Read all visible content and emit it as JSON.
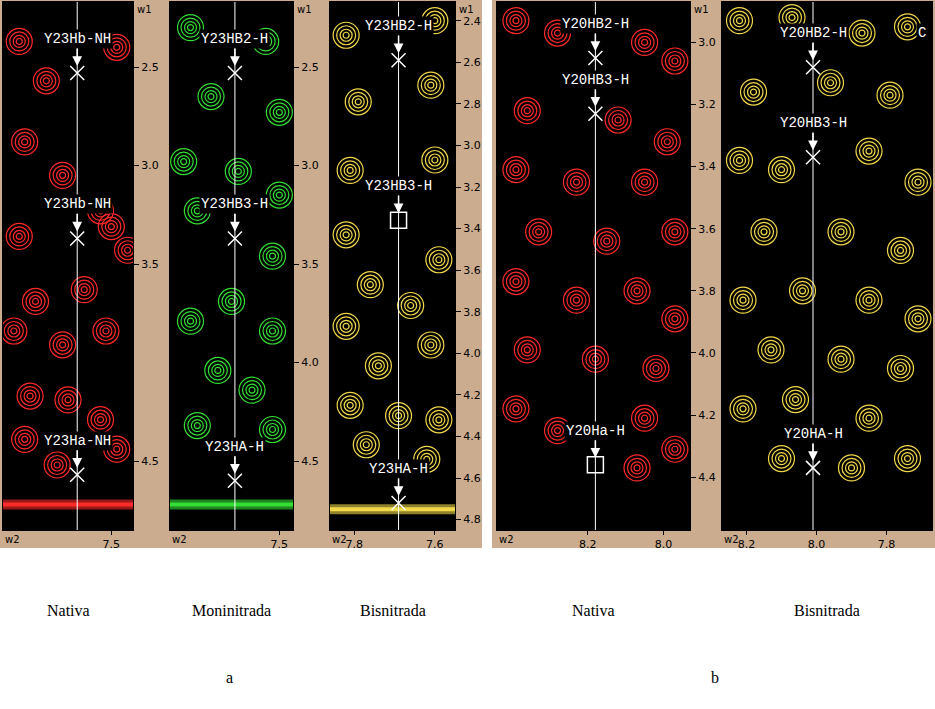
{
  "chart_data": [
    {
      "type": "strip",
      "panel": "a",
      "caption": "Nativa",
      "color": "#ff2a2a",
      "x_label": "w2",
      "y_label": "w1",
      "xlim": [
        7.7,
        7.46
      ],
      "ylim": [
        4.85,
        2.17
      ],
      "xticks": [
        7.5
      ],
      "yticks": [
        2.5,
        {
          "value": 3,
          "label": "3.0"
        },
        3.5,
        4.5
      ],
      "crosshair": 7.563,
      "band": 4.72,
      "peaks": {
        "x": [
          7.67,
          7.62,
          7.49,
          7.66,
          7.59,
          7.52,
          7.67,
          7.5,
          7.47,
          7.64,
          7.55,
          7.68,
          7.59,
          7.51,
          7.65,
          7.58,
          7.52,
          7.66,
          7.6,
          7.49
        ],
        "y": [
          2.37,
          2.57,
          2.4,
          2.88,
          3.05,
          3.23,
          3.36,
          3.31,
          3.43,
          3.69,
          3.63,
          3.84,
          3.91,
          3.84,
          4.17,
          4.19,
          4.29,
          4.39,
          4.52,
          4.44
        ]
      },
      "labels": [
        {
          "text": "Y23Hb-NH",
          "x": 7.563,
          "y": 2.53,
          "marker": "x"
        },
        {
          "text": "Y23Hb-NH",
          "x": 7.563,
          "y": 3.37,
          "marker": "x"
        },
        {
          "text": "Y23Ha-NH",
          "x": 7.563,
          "y": 4.57,
          "marker": "x"
        }
      ]
    },
    {
      "type": "strip",
      "panel": "a",
      "caption": "Moninitrada",
      "color": "#33dd33",
      "x_label": "w2",
      "y_label": "w1",
      "xlim": [
        7.66,
        7.48
      ],
      "ylim": [
        4.85,
        2.17
      ],
      "xticks": [
        7.5
      ],
      "yticks": [
        2.5,
        {
          "value": 3,
          "label": "3.0"
        },
        3.5,
        {
          "value": 4,
          "label": "4.0"
        },
        4.5
      ],
      "crosshair": 7.565,
      "band": 4.72,
      "peaks": {
        "x": [
          7.63,
          7.52,
          7.6,
          7.5,
          7.64,
          7.56,
          7.5,
          7.62,
          7.51,
          7.57,
          7.63,
          7.51,
          7.59,
          7.54,
          7.62,
          7.51
        ],
        "y": [
          2.3,
          2.37,
          2.65,
          2.73,
          2.98,
          3.03,
          3.15,
          3.23,
          3.46,
          3.69,
          3.79,
          3.84,
          4.04,
          4.14,
          4.32,
          4.34
        ]
      },
      "labels": [
        {
          "text": "Y23HB2-H",
          "x": 7.565,
          "y": 2.53,
          "marker": "x"
        },
        {
          "text": "Y23HB3-H",
          "x": 7.565,
          "y": 3.37,
          "marker": "x"
        },
        {
          "text": "Y23HA-H",
          "x": 7.565,
          "y": 4.6,
          "marker": "x"
        }
      ]
    },
    {
      "type": "strip",
      "panel": "a",
      "caption": "Bisnitrada",
      "color": "#f0d84a",
      "x_label": "w2",
      "y_label": "w1",
      "xlim": [
        7.86,
        7.55
      ],
      "ylim": [
        4.85,
        2.31
      ],
      "xticks": [
        7.8,
        7.6
      ],
      "yticks": [
        2.4,
        2.6,
        2.8,
        {
          "value": 3,
          "label": "3.0"
        },
        3.2,
        3.4,
        3.6,
        3.8,
        {
          "value": 4,
          "label": "4.0"
        },
        4.2,
        4.4,
        4.6,
        4.8
      ],
      "crosshair": 7.69,
      "band": 4.75,
      "peaks": {
        "x": [
          7.82,
          7.6,
          7.79,
          7.61,
          7.81,
          7.6,
          7.82,
          7.59,
          7.76,
          7.66,
          7.82,
          7.61,
          7.74,
          7.81,
          7.69,
          7.59,
          7.77,
          7.62
        ],
        "y": [
          2.47,
          2.4,
          2.79,
          2.71,
          3.12,
          3.07,
          3.43,
          3.55,
          3.67,
          3.77,
          3.87,
          3.96,
          4.06,
          4.25,
          4.3,
          4.32,
          4.44,
          4.51
        ]
      },
      "labels": [
        {
          "text": "Y23HB2-H",
          "x": 7.69,
          "y": 2.59,
          "marker": "x"
        },
        {
          "text": "Y23HB3-H",
          "x": 7.69,
          "y": 3.36,
          "marker": "square"
        },
        {
          "text": "Y23HA-H",
          "x": 7.69,
          "y": 4.72,
          "marker": "x"
        }
      ]
    },
    {
      "type": "strip",
      "panel": "b",
      "caption": "Nativa",
      "color": "#ff2a2a",
      "x_label": "w2",
      "y_label": "w1",
      "xlim": [
        8.44,
        7.93
      ],
      "ylim": [
        4.57,
        2.87
      ],
      "xticks": [
        8.2,
        {
          "value": 8,
          "label": "8.0"
        }
      ],
      "yticks": [
        {
          "value": 3,
          "label": "3.0"
        },
        3.2,
        3.4,
        3.6,
        3.8,
        {
          "value": 4,
          "label": "4.0"
        },
        4.2,
        4.4
      ],
      "crosshair": 8.18,
      "peaks": {
        "x": [
          8.39,
          8.28,
          8.05,
          7.97,
          8.36,
          8.12,
          7.99,
          8.39,
          8.23,
          8.05,
          8.33,
          8.15,
          7.97,
          8.39,
          8.23,
          8.07,
          7.97,
          8.36,
          8.18,
          8.02,
          8.39,
          8.28,
          8.05,
          8.07,
          7.97
        ],
        "y": [
          2.93,
          2.97,
          3.0,
          3.06,
          3.22,
          3.25,
          3.32,
          3.41,
          3.45,
          3.45,
          3.61,
          3.64,
          3.61,
          3.77,
          3.83,
          3.8,
          3.89,
          3.99,
          4.02,
          4.05,
          4.18,
          4.25,
          4.21,
          4.37,
          4.31
        ]
      },
      "labels": [
        {
          "text": "Y20HB2-H",
          "x": 8.18,
          "y": 3.05,
          "marker": "x"
        },
        {
          "text": "Y20HB3-H",
          "x": 8.18,
          "y": 3.23,
          "marker": "x"
        },
        {
          "text": "Y20Ha-H",
          "x": 8.18,
          "y": 4.36,
          "marker": "square"
        }
      ]
    },
    {
      "type": "strip",
      "panel": "b",
      "caption": "Bisnitrada",
      "color": "#f0d84a",
      "x_label": "w2",
      "tick_labels": "x",
      "xlim": [
        8.27,
        7.67
      ],
      "ylim": [
        4.57,
        2.87
      ],
      "xticks": [
        8.2,
        {
          "value": 8,
          "label": "8.0"
        },
        7.8
      ],
      "crosshair": 8.01,
      "peaks": {
        "x": [
          8.22,
          8.07,
          7.87,
          7.74,
          8.18,
          7.96,
          7.79,
          8.22,
          8.1,
          7.85,
          7.71,
          8.15,
          7.93,
          7.76,
          8.21,
          8.04,
          7.85,
          7.71,
          8.13,
          7.93,
          7.76,
          8.21,
          8.06,
          7.85,
          8.1,
          7.9,
          7.74
        ],
        "y": [
          2.93,
          2.92,
          2.97,
          2.95,
          3.16,
          3.13,
          3.17,
          3.38,
          3.41,
          3.35,
          3.45,
          3.61,
          3.61,
          3.67,
          3.83,
          3.8,
          3.83,
          3.89,
          3.99,
          4.02,
          4.05,
          4.18,
          4.15,
          4.21,
          4.34,
          4.37,
          4.34
        ]
      },
      "labels": [
        {
          "text": "Y20HB2-H",
          "x": 8.01,
          "y": 3.08,
          "marker": "x"
        },
        {
          "text": "Y20HB3-H",
          "x": 8.01,
          "y": 3.37,
          "marker": "x"
        },
        {
          "text": "Y20HA-H",
          "x": 8.01,
          "y": 4.37,
          "marker": "x"
        },
        {
          "text": "C",
          "x": 7.7,
          "y": 2.97
        }
      ]
    }
  ]
}
